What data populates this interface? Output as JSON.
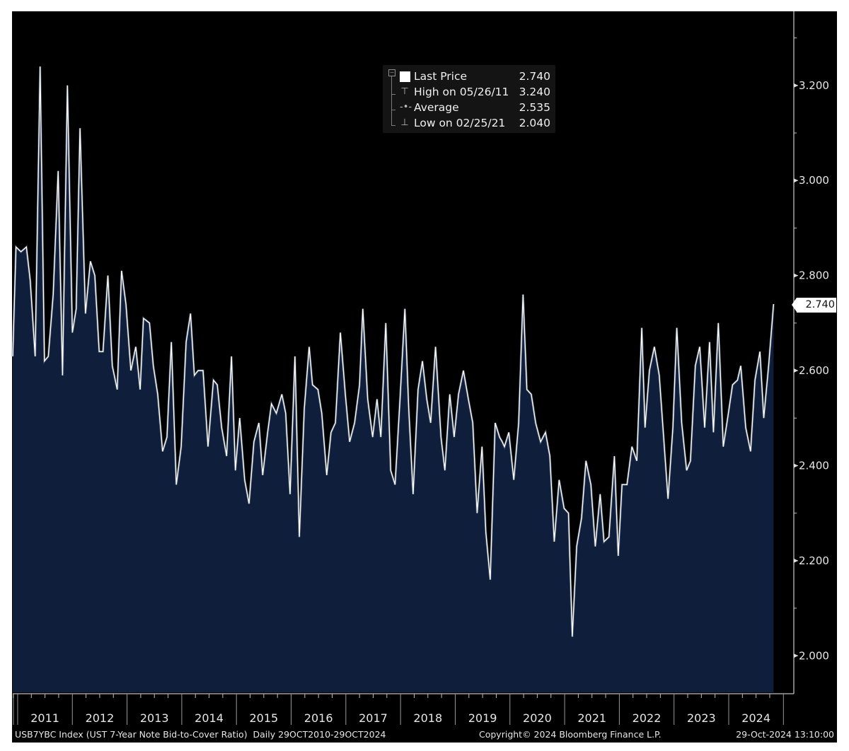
{
  "chart_data": {
    "type": "area",
    "title": "USB7YBC Index (UST 7-Year Note Bid-to-Cover Ratio) Daily 29OCT2010-29OCT2024",
    "xlabel": "",
    "ylabel": "",
    "ylim": [
      1.923,
      3.356
    ],
    "xlim": [
      2010.91,
      2025.19
    ],
    "grid": false,
    "y_ticks": [
      2.0,
      2.2,
      2.4,
      2.6,
      2.8,
      3.0,
      3.2
    ],
    "y_tick_labels": [
      "2.000",
      "2.200",
      "2.400",
      "2.600",
      "2.800",
      "3.000",
      "3.200"
    ],
    "y_minor_ticks": [
      2.1,
      2.3,
      2.5,
      2.7,
      2.9,
      3.1,
      3.3
    ],
    "x_year_labels": [
      "2011",
      "2012",
      "2013",
      "2014",
      "2015",
      "2016",
      "2017",
      "2018",
      "2019",
      "2020",
      "2021",
      "2022",
      "2023",
      "2024"
    ],
    "x_year_starts": [
      2011,
      2012,
      2013,
      2014,
      2015,
      2016,
      2017,
      2018,
      2019,
      2020,
      2021,
      2022,
      2023,
      2024,
      2025
    ],
    "series": [
      {
        "name": "Last Price",
        "color": "#ffffff",
        "fill": "#0e1e3b",
        "x": [
          2010.91,
          2010.97,
          2011.06,
          2011.16,
          2011.23,
          2011.32,
          2011.41,
          2011.49,
          2011.56,
          2011.65,
          2011.74,
          2011.82,
          2011.91,
          2012.0,
          2012.07,
          2012.14,
          2012.24,
          2012.33,
          2012.41,
          2012.49,
          2012.56,
          2012.65,
          2012.73,
          2012.82,
          2012.9,
          2012.98,
          2013.07,
          2013.16,
          2013.24,
          2013.3,
          2013.41,
          2013.48,
          2013.56,
          2013.65,
          2013.73,
          2013.81,
          2013.9,
          2013.99,
          2014.08,
          2014.16,
          2014.23,
          2014.3,
          2014.39,
          2014.48,
          2014.58,
          2014.65,
          2014.73,
          2014.82,
          2014.91,
          2014.98,
          2015.06,
          2015.15,
          2015.23,
          2015.32,
          2015.41,
          2015.48,
          2015.57,
          2015.64,
          2015.73,
          2015.83,
          2015.9,
          2015.98,
          2016.07,
          2016.15,
          2016.24,
          2016.33,
          2016.39,
          2016.49,
          2016.56,
          2016.65,
          2016.73,
          2016.81,
          2016.9,
          2016.99,
          2017.07,
          2017.16,
          2017.25,
          2017.31,
          2017.4,
          2017.49,
          2017.57,
          2017.64,
          2017.73,
          2017.82,
          2017.9,
          2017.99,
          2018.08,
          2018.15,
          2018.23,
          2018.32,
          2018.4,
          2018.48,
          2018.55,
          2018.64,
          2018.74,
          2018.81,
          2018.9,
          2018.98,
          2019.06,
          2019.15,
          2019.24,
          2019.32,
          2019.4,
          2019.49,
          2019.56,
          2019.64,
          2019.73,
          2019.81,
          2019.86,
          2019.9,
          2019.98,
          2020.07,
          2020.16,
          2020.24,
          2020.31,
          2020.39,
          2020.47,
          2020.56,
          2020.65,
          2020.73,
          2020.81,
          2020.9,
          2020.99,
          2021.07,
          2021.14,
          2021.22,
          2021.31,
          2021.39,
          2021.48,
          2021.56,
          2021.65,
          2021.72,
          2021.81,
          2021.91,
          2021.98,
          2022.05,
          2022.14,
          2022.23,
          2022.32,
          2022.41,
          2022.47,
          2022.55,
          2022.64,
          2022.73,
          2022.81,
          2022.89,
          2022.98,
          2023.05,
          2023.14,
          2023.23,
          2023.3,
          2023.39,
          2023.47,
          2023.56,
          2023.65,
          2023.72,
          2023.81,
          2023.9,
          2023.98,
          2024.07,
          2024.16,
          2024.22,
          2024.31,
          2024.4,
          2024.48,
          2024.57,
          2024.64,
          2024.73,
          2024.82
        ],
        "values": [
          2.63,
          2.86,
          2.85,
          2.86,
          2.79,
          2.63,
          3.24,
          2.62,
          2.63,
          2.76,
          3.02,
          2.59,
          3.2,
          2.68,
          2.73,
          3.11,
          2.72,
          2.83,
          2.8,
          2.64,
          2.64,
          2.8,
          2.61,
          2.56,
          2.81,
          2.74,
          2.6,
          2.65,
          2.56,
          2.71,
          2.7,
          2.61,
          2.55,
          2.43,
          2.46,
          2.66,
          2.36,
          2.44,
          2.66,
          2.72,
          2.59,
          2.6,
          2.6,
          2.44,
          2.58,
          2.57,
          2.48,
          2.42,
          2.63,
          2.39,
          2.5,
          2.37,
          2.32,
          2.45,
          2.49,
          2.38,
          2.47,
          2.53,
          2.51,
          2.55,
          2.51,
          2.34,
          2.63,
          2.25,
          2.52,
          2.65,
          2.57,
          2.56,
          2.51,
          2.38,
          2.47,
          2.49,
          2.68,
          2.55,
          2.45,
          2.49,
          2.57,
          2.73,
          2.54,
          2.46,
          2.54,
          2.46,
          2.7,
          2.39,
          2.36,
          2.54,
          2.73,
          2.52,
          2.34,
          2.56,
          2.62,
          2.54,
          2.49,
          2.65,
          2.46,
          2.39,
          2.55,
          2.46,
          2.55,
          2.6,
          2.54,
          2.49,
          2.3,
          2.44,
          2.26,
          2.16,
          2.49,
          2.46,
          2.45,
          2.44,
          2.47,
          2.37,
          2.49,
          2.76,
          2.56,
          2.55,
          2.49,
          2.45,
          2.47,
          2.42,
          2.24,
          2.37,
          2.31,
          2.3,
          2.04,
          2.23,
          2.29,
          2.41,
          2.36,
          2.23,
          2.34,
          2.24,
          2.25,
          2.42,
          2.21,
          2.36,
          2.36,
          2.44,
          2.41,
          2.69,
          2.48,
          2.6,
          2.65,
          2.59,
          2.46,
          2.33,
          2.48,
          2.69,
          2.49,
          2.39,
          2.41,
          2.61,
          2.65,
          2.48,
          2.66,
          2.47,
          2.7,
          2.44,
          2.5,
          2.57,
          2.58,
          2.61,
          2.48,
          2.43,
          2.58,
          2.64,
          2.5,
          2.61,
          2.74
        ]
      }
    ],
    "legend": {
      "position": "top-center",
      "items": [
        {
          "glyph": "swatch",
          "label": "Last Price",
          "value": "2.740"
        },
        {
          "glyph": "high-marker",
          "label": "High on 05/26/11",
          "value": "3.240"
        },
        {
          "glyph": "average-marker",
          "label": "Average",
          "value": "2.535"
        },
        {
          "glyph": "low-marker",
          "label": "Low on 02/25/21",
          "value": "2.040"
        }
      ]
    },
    "last_price_label": "2.740",
    "footer": {
      "source": "USB7YBC Index (UST 7-Year Note Bid-to-Cover Ratio)  Daily 29OCT2010-29OCT2024",
      "copyright": "Copyright© 2024 Bloomberg Finance L.P.",
      "timestamp": "29-Oct-2024 13:10:00"
    }
  }
}
